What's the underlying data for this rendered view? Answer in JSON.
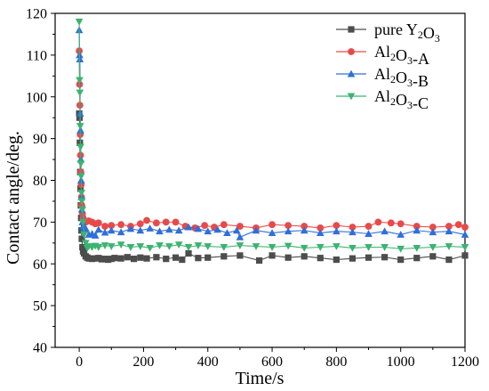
{
  "chart_data": {
    "type": "line",
    "title": "",
    "xlabel": "Time/s",
    "ylabel": "Contact angle/deg.",
    "xlim": [
      -75,
      1200
    ],
    "ylim": [
      40,
      120
    ],
    "xticks": [
      0,
      200,
      400,
      600,
      800,
      1000,
      1200
    ],
    "yticks": [
      40,
      50,
      60,
      70,
      80,
      90,
      100,
      110,
      120
    ],
    "legend_position": "top-right",
    "grid": false,
    "series": [
      {
        "name": "pure Y2O3",
        "legend_parts": [
          [
            "pure Y",
            ""
          ],
          [
            "2",
            "sub"
          ],
          [
            "O",
            ""
          ],
          [
            "3",
            "sub"
          ]
        ],
        "color": "#4d4d4d",
        "marker": "square",
        "points": [
          [
            0,
            96
          ],
          [
            1,
            95
          ],
          [
            2,
            89
          ],
          [
            3,
            82
          ],
          [
            4,
            78
          ],
          [
            5,
            74
          ],
          [
            6,
            71
          ],
          [
            7,
            68
          ],
          [
            8,
            66
          ],
          [
            10,
            64
          ],
          [
            12,
            63
          ],
          [
            15,
            62.5
          ],
          [
            20,
            61.8
          ],
          [
            25,
            61.5
          ],
          [
            30,
            61.3
          ],
          [
            40,
            61.2
          ],
          [
            50,
            61.3
          ],
          [
            60,
            61.4
          ],
          [
            70,
            61.1
          ],
          [
            80,
            61.2
          ],
          [
            90,
            61.0
          ],
          [
            100,
            61.2
          ],
          [
            110,
            61.4
          ],
          [
            130,
            61.3
          ],
          [
            150,
            61.6
          ],
          [
            170,
            61.2
          ],
          [
            190,
            61.5
          ],
          [
            210,
            61.3
          ],
          [
            240,
            61.6
          ],
          [
            270,
            61.2
          ],
          [
            300,
            61.5
          ],
          [
            320,
            61.0
          ],
          [
            340,
            62.5
          ],
          [
            370,
            61.4
          ],
          [
            400,
            61.5
          ],
          [
            450,
            61.8
          ],
          [
            500,
            62.0
          ],
          [
            560,
            60.8
          ],
          [
            600,
            62.0
          ],
          [
            650,
            61.5
          ],
          [
            700,
            61.8
          ],
          [
            750,
            61.4
          ],
          [
            800,
            61.0
          ],
          [
            850,
            61.3
          ],
          [
            900,
            61.5
          ],
          [
            950,
            61.6
          ],
          [
            1000,
            61.0
          ],
          [
            1050,
            61.4
          ],
          [
            1100,
            61.8
          ],
          [
            1150,
            61.0
          ],
          [
            1200,
            62.0
          ]
        ]
      },
      {
        "name": "Al2O3-A",
        "legend_parts": [
          [
            "Al",
            ""
          ],
          [
            "2",
            "sub"
          ],
          [
            "O",
            ""
          ],
          [
            "3",
            "sub"
          ],
          [
            "-A",
            ""
          ]
        ],
        "color": "#e84a4a",
        "marker": "circle",
        "points": [
          [
            0,
            111
          ],
          [
            1,
            103
          ],
          [
            2,
            98
          ],
          [
            3,
            91
          ],
          [
            4,
            86
          ],
          [
            5,
            82
          ],
          [
            6,
            79
          ],
          [
            7,
            76
          ],
          [
            8,
            74
          ],
          [
            10,
            72
          ],
          [
            12,
            71
          ],
          [
            15,
            70.5
          ],
          [
            20,
            70.0
          ],
          [
            30,
            70.3
          ],
          [
            40,
            70.0
          ],
          [
            50,
            69.6
          ],
          [
            60,
            69.8
          ],
          [
            80,
            69.0
          ],
          [
            100,
            69.2
          ],
          [
            130,
            69.4
          ],
          [
            160,
            69.0
          ],
          [
            190,
            69.6
          ],
          [
            210,
            70.4
          ],
          [
            240,
            69.8
          ],
          [
            270,
            70.0
          ],
          [
            300,
            70.0
          ],
          [
            330,
            69.0
          ],
          [
            360,
            68.6
          ],
          [
            390,
            69.2
          ],
          [
            420,
            68.8
          ],
          [
            450,
            69.4
          ],
          [
            500,
            69.0
          ],
          [
            550,
            68.6
          ],
          [
            600,
            69.4
          ],
          [
            650,
            69.2
          ],
          [
            700,
            69.0
          ],
          [
            750,
            68.6
          ],
          [
            800,
            69.2
          ],
          [
            850,
            68.8
          ],
          [
            900,
            69.0
          ],
          [
            930,
            70.0
          ],
          [
            970,
            69.8
          ],
          [
            1000,
            69.6
          ],
          [
            1050,
            69.0
          ],
          [
            1100,
            68.8
          ],
          [
            1150,
            69.0
          ],
          [
            1180,
            69.4
          ],
          [
            1200,
            68.8
          ]
        ]
      },
      {
        "name": "Al2O3-B",
        "legend_parts": [
          [
            "Al",
            ""
          ],
          [
            "2",
            "sub"
          ],
          [
            "O",
            ""
          ],
          [
            "3",
            "sub"
          ],
          [
            "-B",
            ""
          ]
        ],
        "color": "#2f6fd8",
        "marker": "triangle-up",
        "points": [
          [
            0,
            116
          ],
          [
            1,
            110
          ],
          [
            2,
            109
          ],
          [
            3,
            96
          ],
          [
            4,
            92
          ],
          [
            5,
            85
          ],
          [
            6,
            80
          ],
          [
            7,
            76
          ],
          [
            8,
            73
          ],
          [
            10,
            70
          ],
          [
            12,
            69
          ],
          [
            15,
            68.5
          ],
          [
            20,
            68.5
          ],
          [
            30,
            67.0
          ],
          [
            40,
            67.2
          ],
          [
            50,
            66.8
          ],
          [
            60,
            68.2
          ],
          [
            80,
            67.5
          ],
          [
            100,
            68.0
          ],
          [
            130,
            67.6
          ],
          [
            160,
            68.4
          ],
          [
            190,
            68.0
          ],
          [
            220,
            68.5
          ],
          [
            250,
            67.8
          ],
          [
            280,
            68.2
          ],
          [
            310,
            68.0
          ],
          [
            340,
            68.8
          ],
          [
            370,
            68.4
          ],
          [
            400,
            67.8
          ],
          [
            430,
            68.2
          ],
          [
            460,
            67.4
          ],
          [
            490,
            68.0
          ],
          [
            500,
            66.4
          ],
          [
            550,
            68.0
          ],
          [
            600,
            67.4
          ],
          [
            650,
            67.8
          ],
          [
            700,
            68.0
          ],
          [
            750,
            67.4
          ],
          [
            800,
            67.8
          ],
          [
            850,
            67.6
          ],
          [
            900,
            67.2
          ],
          [
            950,
            67.8
          ],
          [
            1000,
            67.0
          ],
          [
            1050,
            68.0
          ],
          [
            1100,
            67.6
          ],
          [
            1150,
            67.8
          ],
          [
            1200,
            67.0
          ]
        ]
      },
      {
        "name": "Al2O3-C",
        "legend_parts": [
          [
            "Al",
            ""
          ],
          [
            "2",
            "sub"
          ],
          [
            "O",
            ""
          ],
          [
            "3",
            "sub"
          ],
          [
            "-C",
            ""
          ]
        ],
        "color": "#3cb371",
        "marker": "triangle-down",
        "points": [
          [
            0,
            118
          ],
          [
            1,
            104
          ],
          [
            2,
            101
          ],
          [
            3,
            93
          ],
          [
            4,
            88
          ],
          [
            5,
            84
          ],
          [
            6,
            81
          ],
          [
            7,
            77
          ],
          [
            8,
            75
          ],
          [
            10,
            73
          ],
          [
            12,
            70
          ],
          [
            15,
            67
          ],
          [
            20,
            65
          ],
          [
            25,
            63.8
          ],
          [
            30,
            64.2
          ],
          [
            40,
            64.0
          ],
          [
            50,
            64.3
          ],
          [
            60,
            64.0
          ],
          [
            80,
            64.4
          ],
          [
            100,
            64.2
          ],
          [
            130,
            64.6
          ],
          [
            160,
            64.0
          ],
          [
            190,
            64.2
          ],
          [
            220,
            63.8
          ],
          [
            250,
            64.4
          ],
          [
            280,
            64.2
          ],
          [
            310,
            64.6
          ],
          [
            340,
            64.0
          ],
          [
            370,
            64.4
          ],
          [
            400,
            64.2
          ],
          [
            450,
            64.0
          ],
          [
            500,
            64.4
          ],
          [
            550,
            64.2
          ],
          [
            600,
            64.0
          ],
          [
            650,
            64.3
          ],
          [
            700,
            63.8
          ],
          [
            750,
            64.0
          ],
          [
            800,
            64.2
          ],
          [
            850,
            63.8
          ],
          [
            900,
            64.0
          ],
          [
            950,
            64.0
          ],
          [
            1000,
            63.6
          ],
          [
            1050,
            63.8
          ],
          [
            1100,
            64.0
          ],
          [
            1150,
            64.2
          ],
          [
            1200,
            64.0
          ]
        ]
      }
    ]
  }
}
